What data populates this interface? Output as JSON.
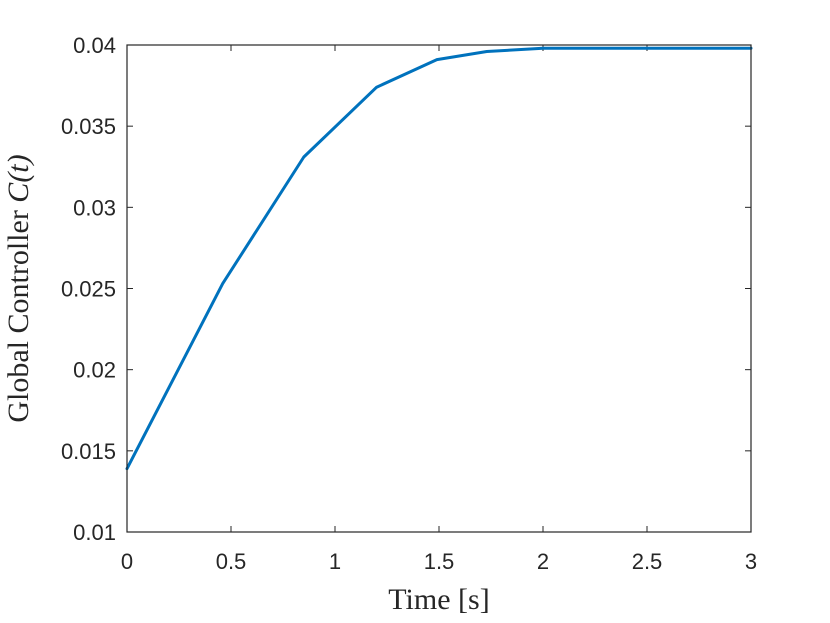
{
  "chart_data": {
    "type": "line",
    "title": "",
    "xlabel": "Time [s]",
    "ylabel_prefix": "Global Controller ",
    "ylabel_math": "C(t)",
    "xlim": [
      0,
      3
    ],
    "ylim": [
      0.01,
      0.04
    ],
    "x_ticks": [
      0,
      0.5,
      1,
      1.5,
      2,
      2.5,
      3
    ],
    "x_tick_labels": [
      "0",
      "0.5",
      "1",
      "1.5",
      "2",
      "2.5",
      "3"
    ],
    "y_ticks": [
      0.01,
      0.015,
      0.02,
      0.025,
      0.03,
      0.035,
      0.04
    ],
    "y_tick_labels": [
      "0.01",
      "0.015",
      "0.02",
      "0.025",
      "0.03",
      "0.035",
      "0.04"
    ],
    "grid": false,
    "legend": "none",
    "series": [
      {
        "color": "#0072BD",
        "x": [
          0,
          0.46,
          0.85,
          1.2,
          1.49,
          1.73,
          2.0,
          2.3,
          2.6,
          3.0
        ],
        "y": [
          0.0139,
          0.0253,
          0.0331,
          0.0374,
          0.0391,
          0.0396,
          0.0398,
          0.0398,
          0.0398,
          0.0398
        ]
      }
    ]
  }
}
